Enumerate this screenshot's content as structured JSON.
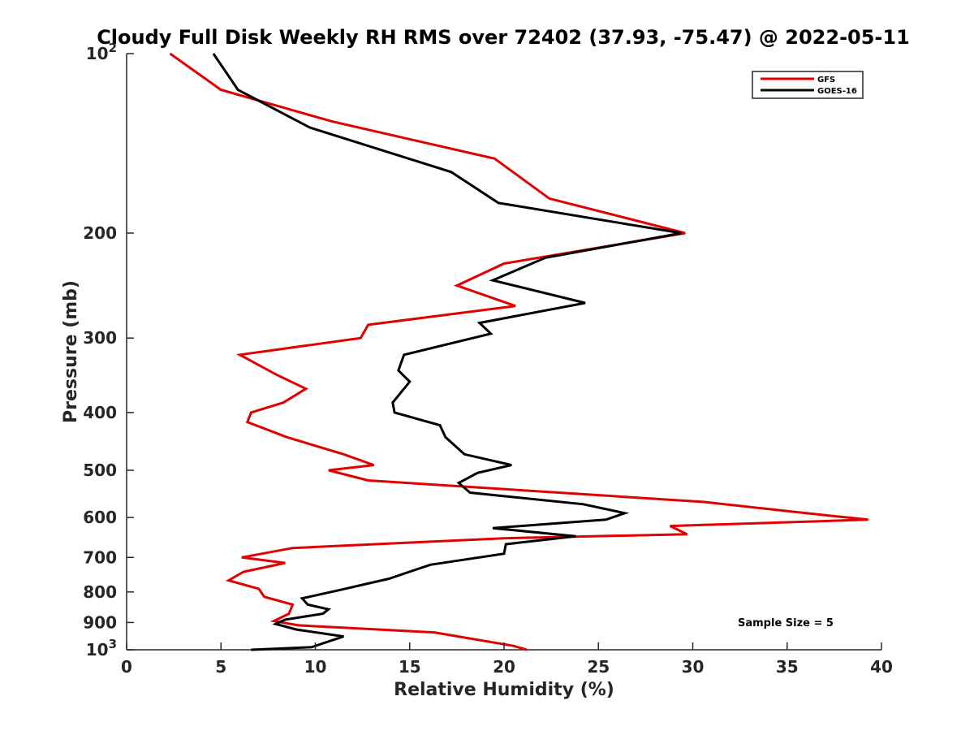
{
  "chart_data": {
    "type": "line",
    "title": "Cloudy Full Disk Weekly RH RMS over 72402 (37.93, -75.47) @ 2022-05-11",
    "xlabel": "Relative Humidity (%)",
    "ylabel": "Pressure (mb)",
    "xlim": [
      0,
      40
    ],
    "ylim": [
      100,
      1000
    ],
    "y_scale": "log",
    "y_reversed": true,
    "xticks": [
      0,
      5,
      10,
      15,
      20,
      25,
      30,
      35,
      40
    ],
    "xtick_labels": [
      "0",
      "5",
      "10",
      "15",
      "20",
      "25",
      "30",
      "35",
      "40"
    ],
    "yticks": [
      100,
      200,
      300,
      400,
      500,
      600,
      700,
      800,
      900,
      1000
    ],
    "ytick_labels": [
      "10^2",
      "200",
      "300",
      "400",
      "500",
      "600",
      "700",
      "800",
      "900",
      "10^3"
    ],
    "grid": false,
    "legend_position": "top-right",
    "annotation": "Sample Size = 5",
    "series": [
      {
        "name": "GFS",
        "color": "#e00000",
        "x": [
          2.3,
          5.0,
          10.9,
          19.5,
          22.4,
          29.6,
          20.0,
          17.5,
          20.6,
          12.8,
          12.4,
          6.0,
          7.9,
          9.5,
          8.3,
          6.6,
          6.4,
          8.5,
          11.5,
          13.1,
          10.7,
          12.8,
          30.6,
          36.0,
          39.3,
          28.8,
          29.7,
          20.0,
          8.8,
          6.1,
          8.4,
          6.2,
          5.4,
          7.0,
          7.3,
          8.8,
          8.6,
          7.8,
          9.1,
          16.3,
          20.5,
          21.2
        ],
        "y": [
          100,
          115,
          130,
          150,
          175,
          200,
          225,
          245,
          265,
          285,
          300,
          320,
          345,
          365,
          385,
          400,
          415,
          440,
          470,
          490,
          500,
          520,
          565,
          590,
          605,
          620,
          640,
          650,
          675,
          700,
          715,
          740,
          765,
          790,
          815,
          840,
          870,
          895,
          910,
          935,
          985,
          1000
        ]
      },
      {
        "name": "GOES-16",
        "color": "#000000",
        "x": [
          4.6,
          5.9,
          9.7,
          17.2,
          19.7,
          29.4,
          22.2,
          19.4,
          24.3,
          18.7,
          19.3,
          14.7,
          14.4,
          15.0,
          14.1,
          14.2,
          16.6,
          16.9,
          17.9,
          20.4,
          18.6,
          17.6,
          18.2,
          24.2,
          26.4,
          25.4,
          19.4,
          23.8,
          20.1,
          20.0,
          16.1,
          13.9,
          11.2,
          9.3,
          9.6,
          10.7,
          10.4,
          8.4,
          7.9,
          9.0,
          11.5,
          9.8,
          6.6
        ],
        "y": [
          100,
          115,
          133,
          158,
          178,
          200,
          220,
          240,
          262,
          283,
          295,
          320,
          340,
          355,
          385,
          400,
          420,
          440,
          470,
          490,
          505,
          525,
          545,
          570,
          590,
          605,
          625,
          645,
          665,
          690,
          720,
          760,
          795,
          820,
          840,
          855,
          870,
          890,
          905,
          925,
          950,
          990,
          1000
        ]
      }
    ]
  }
}
